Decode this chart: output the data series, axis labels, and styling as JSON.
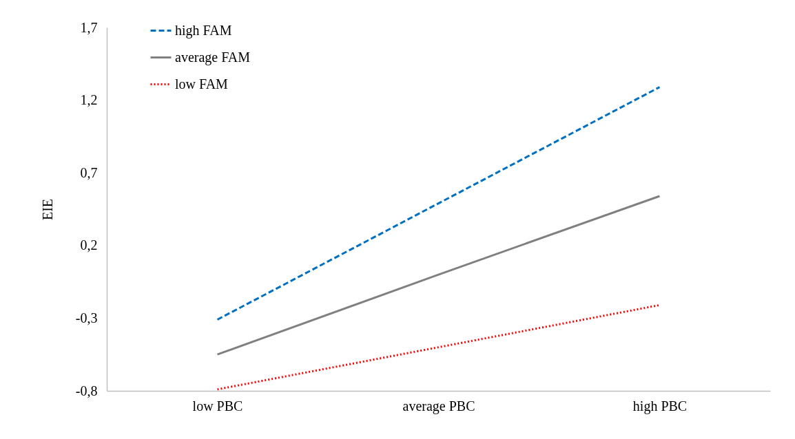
{
  "chart_data": {
    "type": "line",
    "ylabel": "EIE",
    "categories": [
      "low PBC",
      "average PBC",
      "high PBC"
    ],
    "series": [
      {
        "name": "high FAM",
        "color": "#0070c0",
        "line_style": "dashed",
        "values": [
          -0.31,
          0.49,
          1.29
        ]
      },
      {
        "name": "average FAM",
        "color": "#808080",
        "line_style": "solid",
        "values": [
          -0.55,
          0.0,
          0.54
        ]
      },
      {
        "name": "low FAM",
        "color": "#ff0000",
        "line_style": "dotted",
        "values": [
          -0.79,
          -0.5,
          -0.21
        ]
      }
    ],
    "ylim": [
      -0.8,
      1.7
    ],
    "yticks": [
      {
        "value": -0.8,
        "label": "-0,8"
      },
      {
        "value": -0.3,
        "label": "-0,3"
      },
      {
        "value": 0.2,
        "label": "0,2"
      },
      {
        "value": 0.7,
        "label": "0,7"
      },
      {
        "value": 1.2,
        "label": "1,2"
      },
      {
        "value": 1.7,
        "label": "1,7"
      }
    ],
    "grid": false,
    "legend": "top left",
    "marker": "none"
  }
}
